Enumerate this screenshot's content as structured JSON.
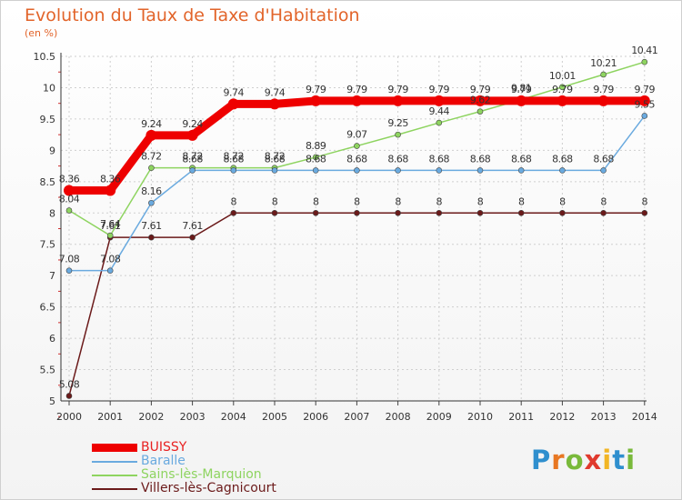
{
  "title": "Evolution du Taux de Taxe d'Habitation",
  "subtitle": "(en %)",
  "logo": {
    "text": "Proxiti",
    "letters": [
      {
        "ch": "P",
        "color": "#2f8fce"
      },
      {
        "ch": "r",
        "color": "#e87722"
      },
      {
        "ch": "o",
        "color": "#79b93a"
      },
      {
        "ch": "x",
        "color": "#e03a2e"
      },
      {
        "ch": "i",
        "color": "#f2b625"
      },
      {
        "ch": "t",
        "color": "#2f8fce"
      },
      {
        "ch": "i",
        "color": "#79b93a"
      }
    ]
  },
  "chart_data": {
    "type": "line",
    "title": "Evolution du Taux de Taxe d'Habitation",
    "ylabel": "(en %)",
    "xlabel": "",
    "ylim": [
      5,
      10.5
    ],
    "yticks": [
      "5",
      "5.5",
      "6",
      "6.5",
      "7",
      "7.5",
      "8",
      "8.5",
      "9",
      "9.5",
      "10",
      "10.5"
    ],
    "grid": true,
    "legend": "bottom-left",
    "categories": [
      "2000",
      "2001",
      "2002",
      "2003",
      "2004",
      "2005",
      "2006",
      "2007",
      "2008",
      "2009",
      "2010",
      "2011",
      "2012",
      "2013",
      "2014"
    ],
    "series": [
      {
        "name": "Villers-lès-Cagnicourt",
        "color": "#6b1a1a",
        "values": [
          5.08,
          7.61,
          7.61,
          7.61,
          8,
          8,
          8,
          8,
          8,
          8,
          8,
          8,
          8,
          8,
          8
        ],
        "labels": [
          "5.08",
          "7.61",
          "7.61",
          "7.61",
          "8",
          "8",
          "8",
          "8",
          "8",
          "8",
          "8",
          "8",
          "8",
          "8",
          "8"
        ]
      },
      {
        "name": "Sains-lès-Marquion",
        "color": "#8ed460",
        "values": [
          8.04,
          7.64,
          8.72,
          8.72,
          8.72,
          8.72,
          8.89,
          9.07,
          9.25,
          9.44,
          9.62,
          9.81,
          10.01,
          10.21,
          10.41
        ],
        "labels": [
          "8.04",
          "7.64",
          "8.72",
          "8.72",
          "8.72",
          "8.72",
          "8.89",
          "9.07",
          "9.25",
          "9.44",
          "9.62",
          "9.81",
          "10.01",
          "10.21",
          "10.41"
        ]
      },
      {
        "name": "Baralle",
        "color": "#6aaadf",
        "values": [
          7.08,
          7.08,
          8.16,
          8.68,
          8.68,
          8.68,
          8.68,
          8.68,
          8.68,
          8.68,
          8.68,
          8.68,
          8.68,
          8.68,
          9.55
        ],
        "labels": [
          "7.08",
          "7.08",
          "8.16",
          "8.68",
          "8.68",
          "8.68",
          "8.68",
          "8.68",
          "8.68",
          "8.68",
          "8.68",
          "8.68",
          "8.68",
          "8.68",
          "9.55"
        ]
      },
      {
        "name": "BUISSY",
        "color": "#ee0000",
        "values": [
          8.36,
          8.36,
          9.24,
          9.24,
          9.74,
          9.74,
          9.79,
          9.79,
          9.79,
          9.79,
          9.79,
          9.79,
          9.79,
          9.79,
          9.79
        ],
        "labels": [
          "8.36",
          "8.36",
          "9.24",
          "9.24",
          "9.74",
          "9.74",
          "9.79",
          "9.79",
          "9.79",
          "9.79",
          "9.79",
          "9.79",
          "9.79",
          "9.79",
          "9.79"
        ]
      }
    ]
  }
}
